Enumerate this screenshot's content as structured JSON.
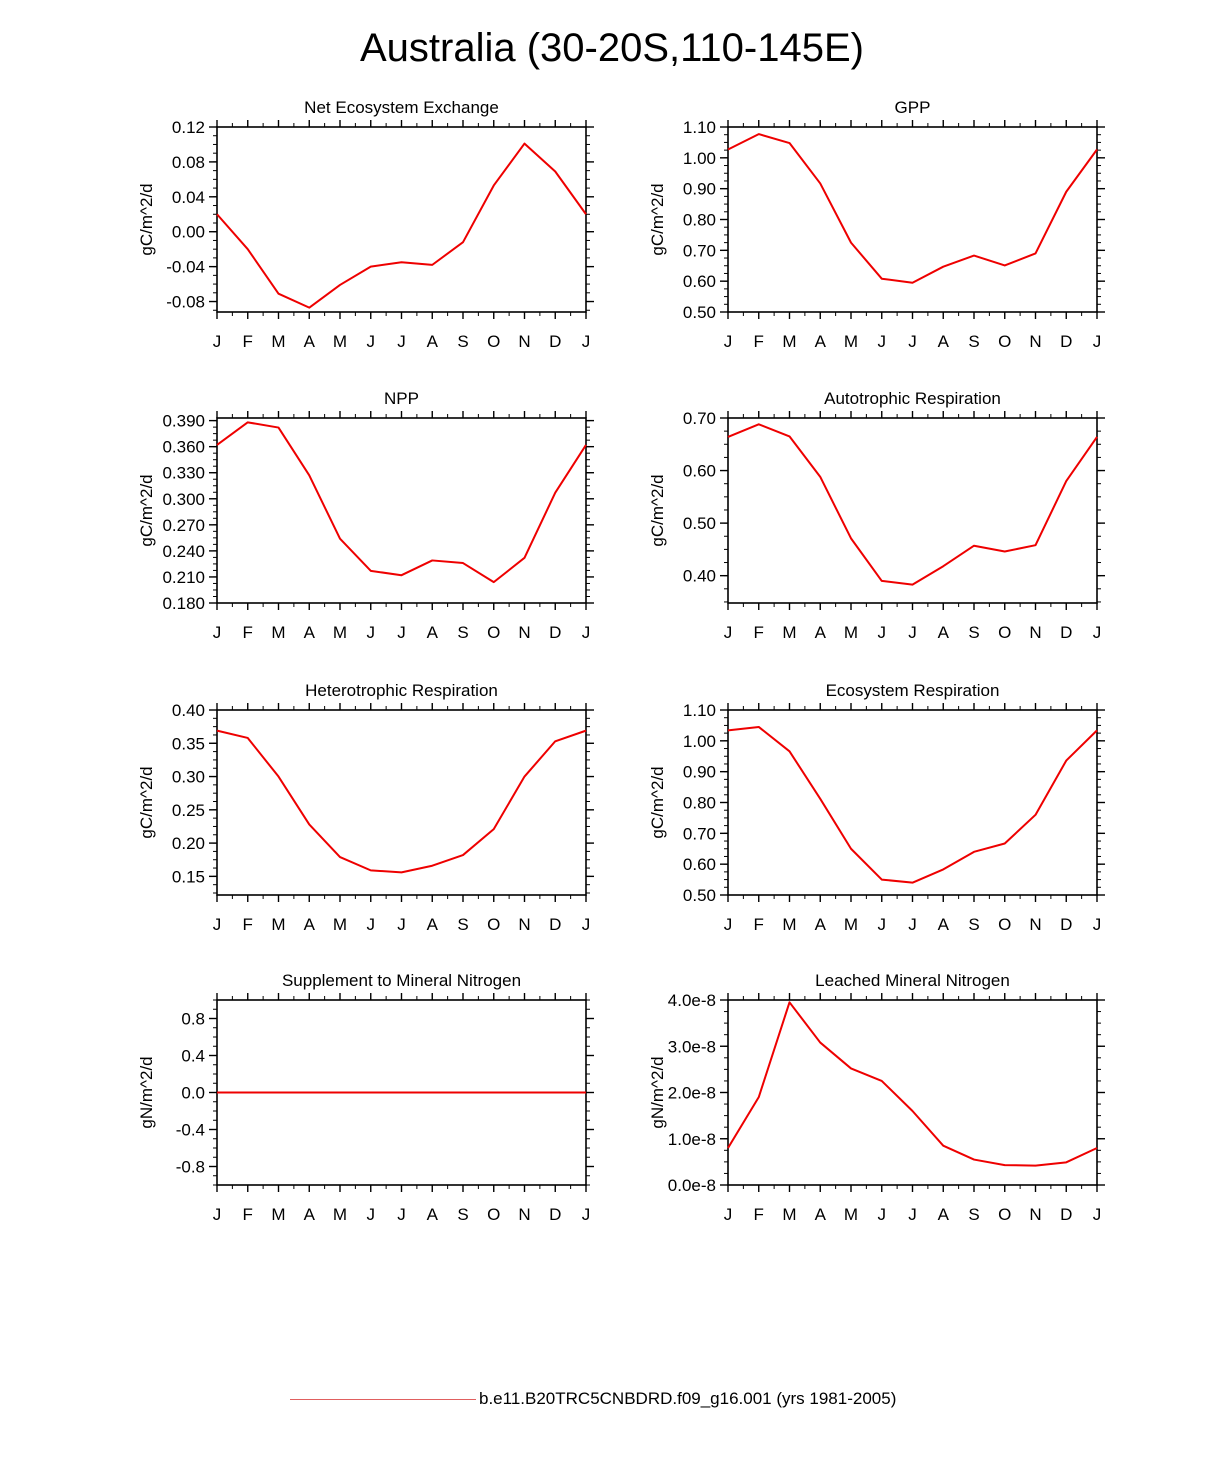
{
  "title": "Australia (30-20S,110-145E)",
  "colors": {
    "series": "#ee0000",
    "axis": "#000000",
    "legend_line": "#e06060"
  },
  "legend": {
    "label": "b.e11.B20TRC5CNBDRD.f09_g16.001 (yrs 1981-2005)"
  },
  "chart_data": [
    {
      "type": "line",
      "title": "Net Ecosystem Exchange",
      "ylabel": "gC/m^2/d",
      "categories": [
        "J",
        "F",
        "M",
        "A",
        "M",
        "J",
        "J",
        "A",
        "S",
        "O",
        "N",
        "D",
        "J"
      ],
      "ylim": [
        -0.092,
        0.12
      ],
      "yticks": [
        0.12,
        0.08,
        0.04,
        0.0,
        -0.04,
        -0.08
      ],
      "yticklabels": [
        "0.12",
        "0.08",
        "0.04",
        "0.00",
        "-0.04",
        "-0.08"
      ],
      "series": [
        {
          "name": "b.e11.B20TRC5CNBDRD.f09_g16.001 (yrs 1981-2005)",
          "values": [
            0.02,
            -0.02,
            -0.071,
            -0.087,
            -0.061,
            -0.04,
            -0.035,
            -0.038,
            -0.012,
            0.053,
            0.101,
            0.069,
            0.02
          ]
        }
      ]
    },
    {
      "type": "line",
      "title": "GPP",
      "ylabel": "gC/m^2/d",
      "categories": [
        "J",
        "F",
        "M",
        "A",
        "M",
        "J",
        "J",
        "A",
        "S",
        "O",
        "N",
        "D",
        "J"
      ],
      "ylim": [
        0.5,
        1.1
      ],
      "yticks": [
        1.1,
        1.0,
        0.9,
        0.8,
        0.7,
        0.6,
        0.5
      ],
      "yticklabels": [
        "1.10",
        "1.00",
        "0.90",
        "0.80",
        "0.70",
        "0.60",
        "0.50"
      ],
      "series": [
        {
          "name": "b.e11.B20TRC5CNBDRD.f09_g16.001 (yrs 1981-2005)",
          "values": [
            1.027,
            1.077,
            1.048,
            0.917,
            0.725,
            0.608,
            0.595,
            0.647,
            0.683,
            0.651,
            0.69,
            0.89,
            1.027
          ]
        }
      ]
    },
    {
      "type": "line",
      "title": "NPP",
      "ylabel": "gC/m^2/d",
      "categories": [
        "J",
        "F",
        "M",
        "A",
        "M",
        "J",
        "J",
        "A",
        "S",
        "O",
        "N",
        "D",
        "J"
      ],
      "ylim": [
        0.18,
        0.393
      ],
      "yticks": [
        0.39,
        0.36,
        0.33,
        0.3,
        0.27,
        0.24,
        0.21,
        0.18
      ],
      "yticklabels": [
        "0.390",
        "0.360",
        "0.330",
        "0.300",
        "0.270",
        "0.240",
        "0.210",
        "0.180"
      ],
      "series": [
        {
          "name": "b.e11.B20TRC5CNBDRD.f09_g16.001 (yrs 1981-2005)",
          "values": [
            0.362,
            0.388,
            0.382,
            0.327,
            0.254,
            0.217,
            0.212,
            0.229,
            0.226,
            0.204,
            0.232,
            0.307,
            0.362
          ]
        }
      ]
    },
    {
      "type": "line",
      "title": "Autotrophic Respiration",
      "ylabel": "gC/m^2/d",
      "categories": [
        "J",
        "F",
        "M",
        "A",
        "M",
        "J",
        "J",
        "A",
        "S",
        "O",
        "N",
        "D",
        "J"
      ],
      "ylim": [
        0.348,
        0.7
      ],
      "yticks": [
        0.7,
        0.6,
        0.5,
        0.4
      ],
      "yticklabels": [
        "0.70",
        "0.60",
        "0.50",
        "0.40"
      ],
      "series": [
        {
          "name": "b.e11.B20TRC5CNBDRD.f09_g16.001 (yrs 1981-2005)",
          "values": [
            0.664,
            0.688,
            0.665,
            0.588,
            0.471,
            0.39,
            0.383,
            0.418,
            0.457,
            0.446,
            0.458,
            0.58,
            0.664
          ]
        }
      ]
    },
    {
      "type": "line",
      "title": "Heterotrophic Respiration",
      "ylabel": "gC/m^2/d",
      "categories": [
        "J",
        "F",
        "M",
        "A",
        "M",
        "J",
        "J",
        "A",
        "S",
        "O",
        "N",
        "D",
        "J"
      ],
      "ylim": [
        0.122,
        0.4
      ],
      "yticks": [
        0.4,
        0.35,
        0.3,
        0.25,
        0.2,
        0.15
      ],
      "yticklabels": [
        "0.40",
        "0.35",
        "0.30",
        "0.25",
        "0.20",
        "0.15"
      ],
      "series": [
        {
          "name": "b.e11.B20TRC5CNBDRD.f09_g16.001 (yrs 1981-2005)",
          "values": [
            0.369,
            0.358,
            0.3,
            0.228,
            0.179,
            0.159,
            0.156,
            0.166,
            0.182,
            0.221,
            0.3,
            0.353,
            0.369
          ]
        }
      ]
    },
    {
      "type": "line",
      "title": "Ecosystem Respiration",
      "ylabel": "gC/m^2/d",
      "categories": [
        "J",
        "F",
        "M",
        "A",
        "M",
        "J",
        "J",
        "A",
        "S",
        "O",
        "N",
        "D",
        "J"
      ],
      "ylim": [
        0.5,
        1.1
      ],
      "yticks": [
        1.1,
        1.0,
        0.9,
        0.8,
        0.7,
        0.6,
        0.5
      ],
      "yticklabels": [
        "1.10",
        "1.00",
        "0.90",
        "0.80",
        "0.70",
        "0.60",
        "0.50"
      ],
      "series": [
        {
          "name": "b.e11.B20TRC5CNBDRD.f09_g16.001 (yrs 1981-2005)",
          "values": [
            1.034,
            1.045,
            0.966,
            0.812,
            0.65,
            0.55,
            0.54,
            0.583,
            0.64,
            0.667,
            0.76,
            0.936,
            1.034
          ]
        }
      ]
    },
    {
      "type": "line",
      "title": "Supplement to Mineral Nitrogen",
      "ylabel": "gN/m^2/d",
      "categories": [
        "J",
        "F",
        "M",
        "A",
        "M",
        "J",
        "J",
        "A",
        "S",
        "O",
        "N",
        "D",
        "J"
      ],
      "ylim": [
        -1.0,
        1.0
      ],
      "yticks": [
        0.8,
        0.4,
        0.0,
        -0.4,
        -0.8
      ],
      "yticklabels": [
        "0.8",
        "0.4",
        "0.0",
        "-0.4",
        "-0.8"
      ],
      "series": [
        {
          "name": "b.e11.B20TRC5CNBDRD.f09_g16.001 (yrs 1981-2005)",
          "values": [
            0,
            0,
            0,
            0,
            0,
            0,
            0,
            0,
            0,
            0,
            0,
            0,
            0
          ]
        }
      ]
    },
    {
      "type": "line",
      "title": "Leached Mineral Nitrogen",
      "ylabel": "gN/m^2/d",
      "categories": [
        "J",
        "F",
        "M",
        "A",
        "M",
        "J",
        "J",
        "A",
        "S",
        "O",
        "N",
        "D",
        "J"
      ],
      "ylim": [
        0.0,
        4e-08
      ],
      "yticks": [
        4e-08,
        3e-08,
        2e-08,
        1e-08,
        0.0
      ],
      "yticklabels": [
        "4.0e-8",
        "3.0e-8",
        "2.0e-8",
        "1.0e-8",
        "0.0e-8"
      ],
      "series": [
        {
          "name": "b.e11.B20TRC5CNBDRD.f09_g16.001 (yrs 1981-2005)",
          "values": [
            8e-09,
            1.9e-08,
            3.95e-08,
            3.08e-08,
            2.52e-08,
            2.25e-08,
            1.6e-08,
            8.5e-09,
            5.5e-09,
            4.3e-09,
            4.2e-09,
            4.9e-09,
            8e-09
          ]
        }
      ]
    }
  ]
}
